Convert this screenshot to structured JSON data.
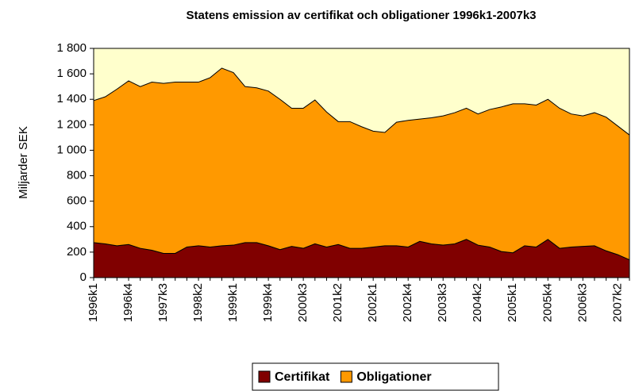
{
  "chart_data": {
    "type": "stacked_area",
    "title": "Statens emission av certifikat och obligationer 1996k1-2007k3",
    "y_label": "Miljarder SEK",
    "categories": [
      "1996k1",
      null,
      null,
      "1996k4",
      null,
      null,
      "1997k3",
      null,
      null,
      "1998k2",
      null,
      null,
      "1999k1",
      null,
      null,
      "1999k4",
      null,
      null,
      "2000k3",
      null,
      null,
      "2001k2",
      null,
      null,
      "2002k1",
      null,
      null,
      "2002k4",
      null,
      null,
      "2003k3",
      null,
      null,
      "2004k2",
      null,
      null,
      "2005k1",
      null,
      null,
      "2005k4",
      null,
      null,
      "2006k3",
      null,
      null,
      "2007k2",
      null
    ],
    "series": [
      {
        "name": "Certifikat",
        "color": "#800000",
        "values": [
          275,
          265,
          250,
          260,
          230,
          215,
          190,
          190,
          240,
          250,
          240,
          250,
          255,
          275,
          275,
          250,
          220,
          245,
          230,
          265,
          240,
          260,
          230,
          230,
          240,
          250,
          250,
          240,
          285,
          265,
          255,
          265,
          300,
          255,
          240,
          205,
          195,
          250,
          240,
          300,
          230,
          240,
          245,
          250,
          210,
          180,
          140
        ]
      },
      {
        "name": "Obligationer",
        "color": "#ff9900",
        "values": [
          1115,
          1155,
          1230,
          1285,
          1270,
          1320,
          1335,
          1345,
          1295,
          1285,
          1330,
          1395,
          1355,
          1225,
          1215,
          1215,
          1180,
          1085,
          1100,
          1130,
          1060,
          965,
          995,
          955,
          910,
          890,
          970,
          995,
          960,
          990,
          1015,
          1030,
          1030,
          1030,
          1080,
          1135,
          1170,
          1115,
          1115,
          1100,
          1100,
          1045,
          1025,
          1045,
          1050,
          1010,
          980
        ]
      }
    ],
    "ylim": [
      0,
      1800
    ],
    "yticks": [
      0,
      200,
      400,
      600,
      800,
      {
        "value": 1000,
        "label": "1 000"
      },
      {
        "value": 1200,
        "label": "1 200"
      },
      {
        "value": 1400,
        "label": "1 400"
      },
      {
        "value": 1600,
        "label": "1 600"
      },
      {
        "value": 1800,
        "label": "1 800"
      }
    ],
    "plot_background": "#ffffcc",
    "legend": "bottom"
  }
}
